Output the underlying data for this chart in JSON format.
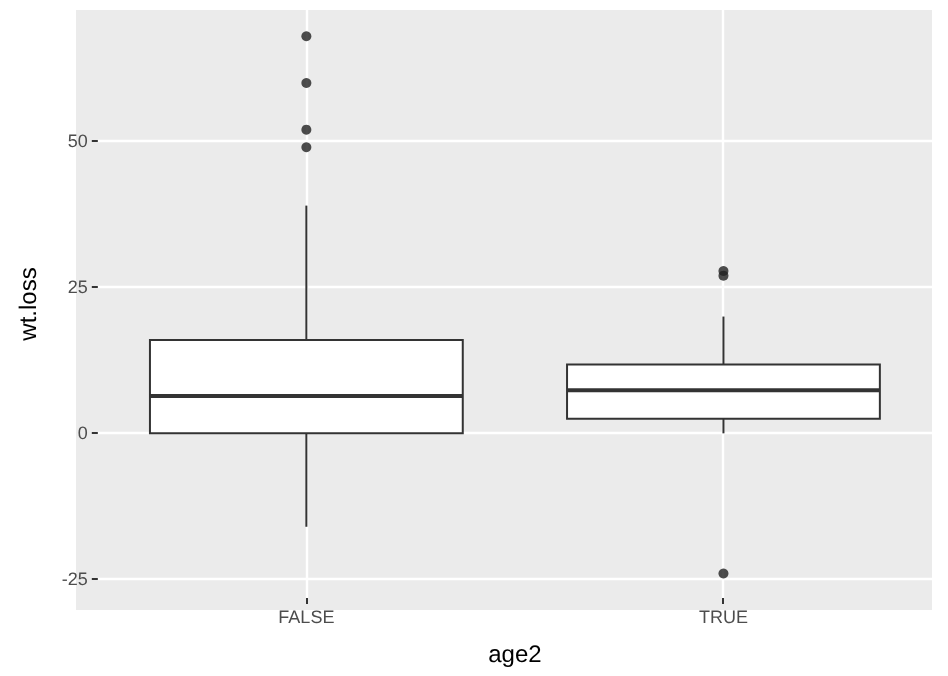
{
  "chart_data": {
    "type": "box",
    "xlabel": "age2",
    "ylabel": "wt.loss",
    "categories": [
      "FALSE",
      "TRUE"
    ],
    "boxes": [
      {
        "low": -16,
        "q1": 0,
        "median": 6.4,
        "q3": 16,
        "high": 39,
        "outliers": [
          68,
          60,
          52,
          49
        ]
      },
      {
        "low": 0,
        "q1": 2.5,
        "median": 7.4,
        "q3": 11.8,
        "high": 20,
        "outliers": [
          27.8,
          27,
          -24
        ]
      }
    ],
    "ylim": [
      -28.2,
      72.5
    ],
    "yticks": [
      -25,
      0,
      25,
      50
    ],
    "grid": true
  }
}
